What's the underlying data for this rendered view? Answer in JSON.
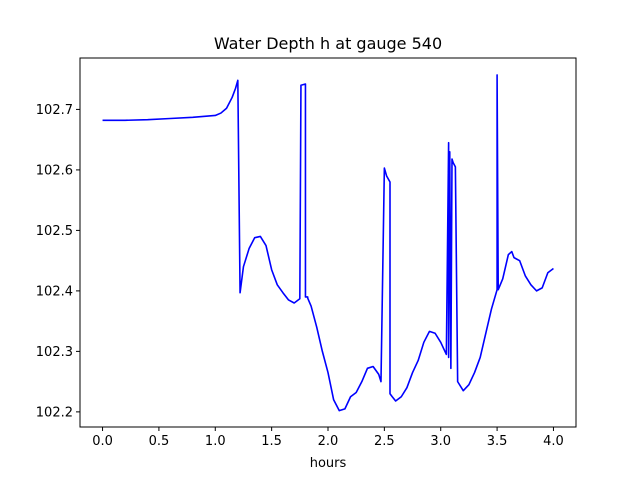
{
  "chart_data": {
    "type": "line",
    "title": "Water Depth h at gauge 540",
    "xlabel": "hours",
    "ylabel": "",
    "xlim": [
      -0.2,
      4.2
    ],
    "ylim": [
      102.175,
      102.785
    ],
    "xticks": [
      0.0,
      0.5,
      1.0,
      1.5,
      2.0,
      2.5,
      3.0,
      3.5,
      4.0
    ],
    "xtick_labels": [
      "0.0",
      "0.5",
      "1.0",
      "1.5",
      "2.0",
      "2.5",
      "3.0",
      "3.5",
      "4.0"
    ],
    "yticks": [
      102.2,
      102.3,
      102.4,
      102.5,
      102.6,
      102.7
    ],
    "ytick_labels": [
      "102.2",
      "102.3",
      "102.4",
      "102.5",
      "102.6",
      "102.7"
    ],
    "grid": false,
    "series": [
      {
        "color": "#0000ff",
        "x": [
          0.0,
          0.2,
          0.4,
          0.6,
          0.8,
          1.0,
          1.05,
          1.1,
          1.15,
          1.18,
          1.2,
          1.22,
          1.22,
          1.25,
          1.3,
          1.35,
          1.4,
          1.45,
          1.5,
          1.55,
          1.6,
          1.65,
          1.7,
          1.75,
          1.76,
          1.76,
          1.8,
          1.8,
          1.82,
          1.82,
          1.85,
          1.9,
          1.95,
          2.0,
          2.05,
          2.1,
          2.15,
          2.2,
          2.25,
          2.3,
          2.35,
          2.4,
          2.45,
          2.47,
          2.5,
          2.5,
          2.52,
          2.55,
          2.55,
          2.57,
          2.6,
          2.65,
          2.7,
          2.75,
          2.8,
          2.85,
          2.9,
          2.95,
          3.0,
          3.05,
          3.07,
          3.07,
          3.08,
          3.09,
          3.1,
          3.1,
          3.11,
          3.13,
          3.15,
          3.15,
          3.2,
          3.25,
          3.3,
          3.35,
          3.4,
          3.45,
          3.5,
          3.5,
          3.51,
          3.55,
          3.6,
          3.63,
          3.65,
          3.7,
          3.75,
          3.8,
          3.85,
          3.9,
          3.95,
          4.0
        ],
        "y": [
          102.682,
          102.682,
          102.683,
          102.685,
          102.687,
          102.69,
          102.694,
          102.702,
          102.72,
          102.735,
          102.748,
          102.397,
          102.397,
          102.44,
          102.47,
          102.488,
          102.49,
          102.475,
          102.435,
          102.41,
          102.397,
          102.385,
          102.38,
          102.387,
          102.74,
          102.74,
          102.742,
          102.39,
          102.39,
          102.388,
          102.375,
          102.34,
          102.3,
          102.265,
          102.22,
          102.202,
          102.205,
          102.225,
          102.232,
          102.25,
          102.272,
          102.275,
          102.262,
          102.25,
          102.603,
          102.603,
          102.59,
          102.58,
          102.23,
          102.225,
          102.218,
          102.225,
          102.24,
          102.265,
          102.285,
          102.315,
          102.333,
          102.33,
          102.315,
          102.295,
          102.645,
          102.29,
          102.63,
          102.272,
          102.618,
          102.618,
          102.612,
          102.605,
          102.25,
          102.25,
          102.235,
          102.245,
          102.265,
          102.29,
          102.33,
          102.37,
          102.402,
          102.757,
          102.402,
          102.42,
          102.46,
          102.465,
          102.455,
          102.45,
          102.425,
          102.41,
          102.4,
          102.405,
          102.43,
          102.437
        ]
      }
    ]
  }
}
